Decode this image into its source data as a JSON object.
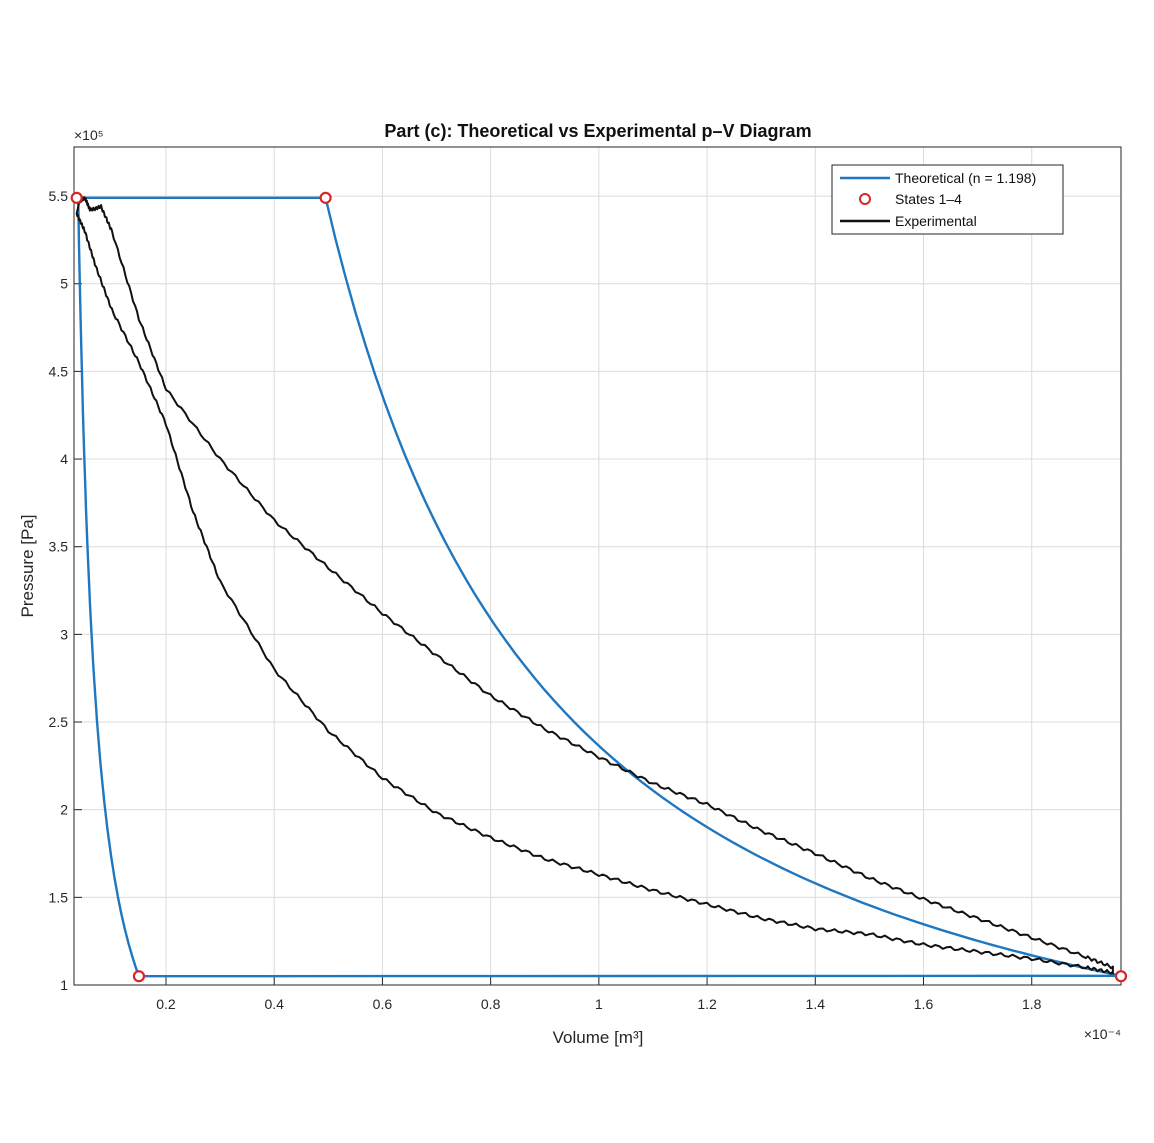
{
  "chart_data": {
    "type": "line",
    "title": "Part (c): Theoretical vs Experimental p–V Diagram",
    "xlabel": "Volume [m³]",
    "ylabel": "Pressure [Pa]",
    "x_multiplier_label": "×10⁻⁴",
    "y_multiplier_label": "×10⁵",
    "xlim": [
      0.03,
      1.965
    ],
    "ylim": [
      1,
      5.78
    ],
    "x_ticks": [
      0.2,
      0.4,
      0.6,
      0.8,
      1,
      1.2,
      1.4,
      1.6,
      1.8
    ],
    "x_tick_labels": [
      "0.2",
      "0.4",
      "0.6",
      "0.8",
      "1",
      "1.2",
      "1.4",
      "1.6",
      "1.8"
    ],
    "y_ticks": [
      1,
      1.5,
      2,
      2.5,
      3,
      3.5,
      4,
      4.5,
      5,
      5.5
    ],
    "y_tick_labels": [
      "1",
      "1.5",
      "2",
      "2.5",
      "3",
      "3.5",
      "4",
      "4.5",
      "5",
      "5.5"
    ],
    "grid": true,
    "legend_position": "top-right",
    "series": [
      {
        "name": "Theoretical (n = 1.198)",
        "color": "#1f77c0",
        "description_points": "closed cycle: isobaric 1→2, polytropic expansion 2→3, isobaric 3→4, polytropic compression 4→1",
        "x": [
          0.035,
          0.495,
          0.6,
          0.8,
          1.0,
          1.2,
          1.4,
          1.6,
          1.8,
          1.965,
          0.15,
          0.1,
          0.07,
          0.05,
          0.035
        ],
        "y": [
          5.49,
          5.49,
          4.39,
          3.09,
          2.36,
          1.9,
          1.58,
          1.35,
          1.18,
          1.05,
          1.05,
          1.64,
          2.48,
          3.64,
          5.49
        ]
      },
      {
        "name": "States 1–4",
        "color": "#d62728",
        "marker": "circle",
        "x": [
          0.035,
          0.495,
          1.965,
          0.15
        ],
        "y": [
          5.49,
          5.49,
          1.05,
          1.05
        ]
      },
      {
        "name": "Experimental",
        "color": "#111111",
        "upper_branch": {
          "x": [
            0.04,
            0.05,
            0.06,
            0.08,
            0.1,
            0.15,
            0.2,
            0.3,
            0.4,
            0.5,
            0.6,
            0.7,
            0.8,
            0.9,
            1.0,
            1.1,
            1.2,
            1.3,
            1.4,
            1.5,
            1.6,
            1.7,
            1.8,
            1.9,
            1.95
          ],
          "y": [
            5.47,
            5.49,
            5.42,
            5.44,
            5.3,
            4.8,
            4.4,
            4.0,
            3.65,
            3.38,
            3.12,
            2.88,
            2.65,
            2.46,
            2.3,
            2.15,
            2.03,
            1.88,
            1.75,
            1.61,
            1.49,
            1.38,
            1.27,
            1.16,
            1.1
          ]
        },
        "lower_branch": {
          "x": [
            1.95,
            1.9,
            1.8,
            1.7,
            1.6,
            1.5,
            1.4,
            1.3,
            1.2,
            1.1,
            1.0,
            0.9,
            0.8,
            0.7,
            0.6,
            0.5,
            0.4,
            0.3,
            0.25,
            0.2,
            0.15,
            0.1,
            0.07,
            0.05,
            0.035
          ],
          "y": [
            1.07,
            1.1,
            1.15,
            1.19,
            1.23,
            1.29,
            1.32,
            1.38,
            1.46,
            1.54,
            1.63,
            1.72,
            1.84,
            1.98,
            2.18,
            2.45,
            2.8,
            3.3,
            3.7,
            4.2,
            4.55,
            4.85,
            5.1,
            5.3,
            5.4
          ]
        }
      }
    ]
  }
}
